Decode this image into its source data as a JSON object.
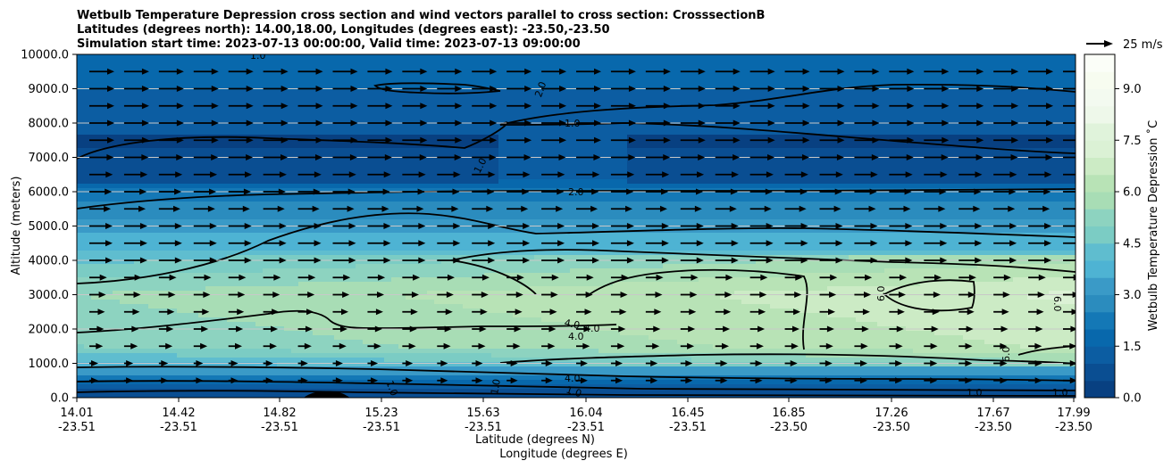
{
  "chart_data": {
    "type": "contourf",
    "title_lines": [
      "Wetbulb Temperature Depression cross section and wind vectors parallel to cross section: CrosssectionB",
      "Latitudes (degrees north): 14.00,18.00, Longitudes (degrees east): -23.50,-23.50",
      "Simulation start time: 2023-07-13 00:00:00, Valid time: 2023-07-13 09:00:00"
    ],
    "xlabel": "Latitude (degrees N)",
    "xlabel2": "Longitude (degrees E)",
    "ylabel": "Altitude (meters)",
    "x_ticks": [
      {
        "lat": "14.01",
        "lon": "-23.51"
      },
      {
        "lat": "14.42",
        "lon": "-23.51"
      },
      {
        "lat": "14.82",
        "lon": "-23.51"
      },
      {
        "lat": "15.23",
        "lon": "-23.51"
      },
      {
        "lat": "15.63",
        "lon": "-23.51"
      },
      {
        "lat": "16.04",
        "lon": "-23.51"
      },
      {
        "lat": "16.45",
        "lon": "-23.51"
      },
      {
        "lat": "16.85",
        "lon": "-23.50"
      },
      {
        "lat": "17.26",
        "lon": "-23.50"
      },
      {
        "lat": "17.67",
        "lon": "-23.50"
      },
      {
        "lat": "17.99",
        "lon": "-23.50"
      }
    ],
    "y_ticks": [
      "0.0",
      "1000.0",
      "2000.0",
      "3000.0",
      "4000.0",
      "5000.0",
      "6000.0",
      "7000.0",
      "8000.0",
      "9000.0",
      "10000.0"
    ],
    "ylim": [
      0,
      10000
    ],
    "colorbar": {
      "label": "Wetbulb Temperature Depression $^\\circ$C",
      "label_text": "Wetbulb Temperature Depression ˚C",
      "min": 0.0,
      "max": 10.0,
      "step": 0.5,
      "ticks": [
        "0.0",
        "1.5",
        "3.0",
        "4.5",
        "6.0",
        "7.5",
        "9.0"
      ]
    },
    "quiver_key": {
      "label": "25 m/s"
    },
    "contour_labels": [
      "1.0",
      "2.0",
      "1.0",
      "1.0",
      "2.0",
      "4.0",
      "4.0",
      "4.0",
      "4.0",
      "6.0",
      "6.0",
      "6.0",
      "1.0",
      "1.0",
      "1.0",
      "1.0",
      "1.0"
    ],
    "layers": [
      {
        "alt": 200,
        "value": 0.8
      },
      {
        "alt": 700,
        "value": 3.0
      },
      {
        "alt": 1500,
        "value": 5.0
      },
      {
        "alt": 3000,
        "value": 5.5
      },
      {
        "alt": 4500,
        "value": 3.8
      },
      {
        "alt": 5600,
        "value": 2.6
      },
      {
        "alt": 6500,
        "value": 1.4
      },
      {
        "alt": 8000,
        "value": 1.0
      },
      {
        "alt": 9500,
        "value": 1.8
      }
    ],
    "colors": {
      "levels": [
        "#084081",
        "#0a4e92",
        "#0c5da2",
        "#0868ac",
        "#1478b6",
        "#2b8cbe",
        "#3a9ac7",
        "#4eb3d3",
        "#5fbdcf",
        "#7bccc4",
        "#8dd3c0",
        "#a8ddb5",
        "#b8e3b6",
        "#ccebc5",
        "#dbf1d5",
        "#e0f3db",
        "#eef8ea",
        "#f3faf0",
        "#f7fcf0",
        "#fbfef8"
      ],
      "contour": "#000000",
      "arrow": "#000000",
      "grid": "#c8c8c8"
    }
  }
}
